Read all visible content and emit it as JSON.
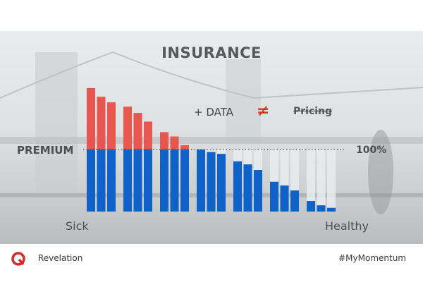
{
  "title": "INSURANCE",
  "footer": {
    "brand": "Revelation",
    "hashtag": "#MyMomentum"
  },
  "colors": {
    "premium_fill": "#0f63c8",
    "above_fill": "#e8574f",
    "gap_fill": "#e9ecef",
    "accent_neq": "#d63a2a"
  },
  "chart_data": {
    "type": "bar",
    "premium_line_label": "PREMIUM",
    "premium_level": 100,
    "premium_level_label": "100%",
    "x_left_label": "Sick",
    "x_right_label": "Healthy",
    "annotations": {
      "plus_data": "+ DATA",
      "not_equal": "≠",
      "pricing": "Pricing"
    },
    "groups": [
      [
        199,
        185,
        176
      ],
      [
        169,
        159,
        145
      ],
      [
        128,
        121,
        107
      ],
      [
        100,
        96,
        93
      ],
      [
        81,
        76,
        67
      ],
      [
        48,
        42,
        34
      ],
      [
        17,
        10,
        6
      ]
    ],
    "ylim": [
      0,
      200
    ],
    "grid": false
  }
}
